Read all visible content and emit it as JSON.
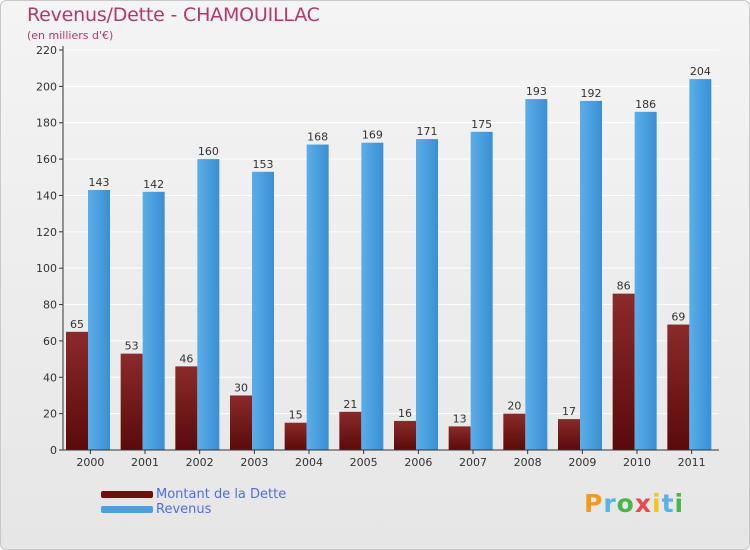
{
  "title": "Revenus/Dette - CHAMOUILLAC",
  "subtitle": "(en milliers d'€)",
  "logo": {
    "text": "Proxiti",
    "colors": [
      "#f29a1c",
      "#5ab0e8",
      "#49b649",
      "#e94b4b",
      "#f2c617",
      "#5ab0e8",
      "#49b649"
    ]
  },
  "colors": {
    "dette_top": "#8b2a2a",
    "dette_bottom": "#5a0a0a",
    "revenus_top": "#5aaee8",
    "revenus_bottom": "#3a8fd4",
    "grid": "#ffffff",
    "axis": "#333333"
  },
  "legend": [
    {
      "label": "Montant de la Dette",
      "color": "#6e1010"
    },
    {
      "label": "Revenus",
      "color": "#4aa0e0"
    }
  ],
  "chart_data": {
    "type": "bar",
    "title": "Revenus/Dette - CHAMOUILLAC",
    "subtitle": "(en milliers d'€)",
    "xlabel": "",
    "ylabel": "",
    "categories": [
      "2000",
      "2001",
      "2002",
      "2003",
      "2004",
      "2005",
      "2006",
      "2007",
      "2008",
      "2009",
      "2010",
      "2011"
    ],
    "series": [
      {
        "name": "Montant de la Dette",
        "values": [
          65,
          53,
          46,
          30,
          15,
          21,
          16,
          13,
          20,
          17,
          86,
          69
        ]
      },
      {
        "name": "Revenus",
        "values": [
          143,
          142,
          160,
          153,
          168,
          169,
          171,
          175,
          193,
          192,
          186,
          204
        ]
      }
    ],
    "ylim": [
      0,
      220
    ],
    "yticks": [
      0,
      20,
      40,
      60,
      80,
      100,
      120,
      140,
      160,
      180,
      200,
      220
    ],
    "grid": true,
    "legend_position": "bottom-left"
  }
}
